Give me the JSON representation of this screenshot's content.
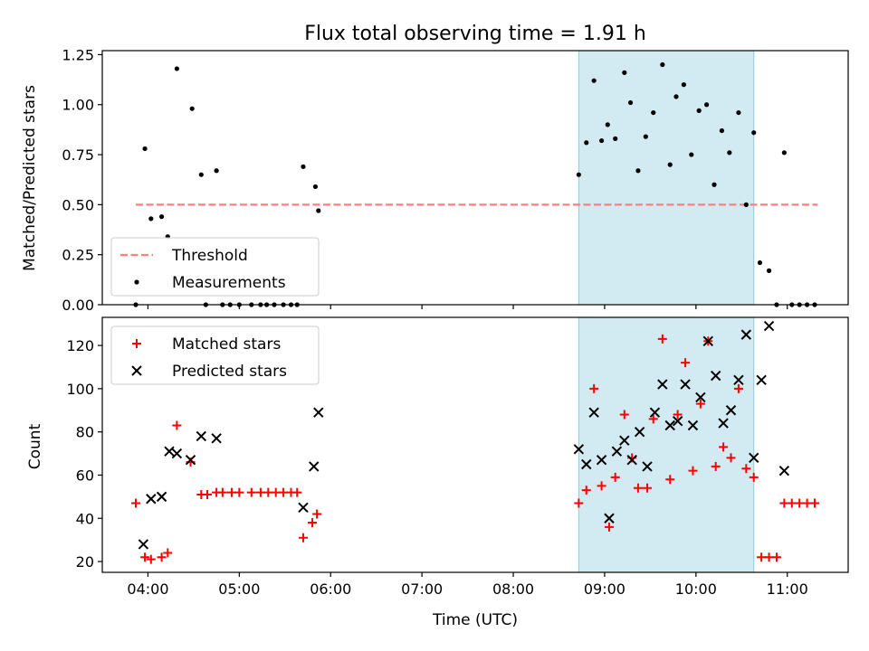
{
  "title": "Flux total observing time = 1.91 h",
  "colors": {
    "threshold": "#ff7f7f",
    "measurement": "#000000",
    "matched": "#ff0000",
    "predicted": "#000000",
    "span_fill": "#add8e6",
    "span_edge": "#8fcbd9"
  },
  "chart_data": [
    {
      "type": "scatter",
      "xlabel": "",
      "ylabel": "Matched/Predicted stars",
      "ylim": [
        0,
        1.27
      ],
      "xlim": [
        "03:30",
        "11:40"
      ],
      "yticks": [
        0.0,
        0.25,
        0.5,
        0.75,
        1.0,
        1.25
      ],
      "ytick_labels": [
        "0.00",
        "0.25",
        "0.50",
        "0.75",
        "1.00",
        "1.25"
      ],
      "highlight_span": [
        "08:43",
        "10:38"
      ],
      "legend_position": "lower-left",
      "legend": [
        "Threshold",
        "Measurements"
      ],
      "threshold": {
        "name": "Threshold",
        "y": 0.5,
        "x_range": [
          "03:52",
          "11:20"
        ]
      },
      "series": [
        {
          "name": "Measurements",
          "points": [
            [
              "03:52",
              0.0
            ],
            [
              "03:58",
              0.78
            ],
            [
              "04:02",
              0.43
            ],
            [
              "04:09",
              0.44
            ],
            [
              "04:13",
              0.34
            ],
            [
              "04:19",
              1.18
            ],
            [
              "04:29",
              0.98
            ],
            [
              "04:35",
              0.65
            ],
            [
              "04:38",
              0.0
            ],
            [
              "04:45",
              0.67
            ],
            [
              "04:49",
              0.0
            ],
            [
              "04:54",
              0.0
            ],
            [
              "05:00",
              0.0
            ],
            [
              "05:08",
              0.0
            ],
            [
              "05:14",
              0.0
            ],
            [
              "05:18",
              0.0
            ],
            [
              "05:23",
              0.0
            ],
            [
              "05:29",
              0.0
            ],
            [
              "05:34",
              0.0
            ],
            [
              "05:38",
              0.0
            ],
            [
              "05:42",
              0.69
            ],
            [
              "05:50",
              0.59
            ],
            [
              "05:52",
              0.47
            ],
            [
              "08:43",
              0.65
            ],
            [
              "08:48",
              0.81
            ],
            [
              "08:53",
              1.12
            ],
            [
              "08:58",
              0.82
            ],
            [
              "09:02",
              0.9
            ],
            [
              "09:07",
              0.83
            ],
            [
              "09:13",
              1.16
            ],
            [
              "09:17",
              1.01
            ],
            [
              "09:22",
              0.67
            ],
            [
              "09:27",
              0.84
            ],
            [
              "09:32",
              0.96
            ],
            [
              "09:38",
              1.2
            ],
            [
              "09:43",
              0.7
            ],
            [
              "09:47",
              1.04
            ],
            [
              "09:52",
              1.1
            ],
            [
              "09:57",
              0.75
            ],
            [
              "10:02",
              0.97
            ],
            [
              "10:07",
              1.0
            ],
            [
              "10:12",
              0.6
            ],
            [
              "10:17",
              0.87
            ],
            [
              "10:22",
              0.76
            ],
            [
              "10:28",
              0.96
            ],
            [
              "10:33",
              0.5
            ],
            [
              "10:38",
              0.86
            ],
            [
              "10:42",
              0.21
            ],
            [
              "10:48",
              0.17
            ],
            [
              "10:53",
              0.0
            ],
            [
              "10:58",
              0.76
            ],
            [
              "11:03",
              0.0
            ],
            [
              "11:08",
              0.0
            ],
            [
              "11:13",
              0.0
            ],
            [
              "11:18",
              0.0
            ]
          ]
        }
      ]
    },
    {
      "type": "scatter",
      "xlabel": "Time (UTC)",
      "ylabel": "Count",
      "ylim": [
        15,
        133
      ],
      "xlim": [
        "03:30",
        "11:40"
      ],
      "yticks": [
        20,
        40,
        60,
        80,
        100,
        120
      ],
      "ytick_labels": [
        "20",
        "40",
        "60",
        "80",
        "100",
        "120"
      ],
      "xticks": [
        "04:00",
        "05:00",
        "06:00",
        "07:00",
        "08:00",
        "09:00",
        "10:00",
        "11:00"
      ],
      "highlight_span": [
        "08:43",
        "10:38"
      ],
      "legend_position": "upper-left",
      "legend": [
        "Matched stars",
        "Predicted stars"
      ],
      "series": [
        {
          "name": "Matched stars",
          "marker": "plus",
          "points": [
            [
              "03:52",
              47
            ],
            [
              "03:58",
              22
            ],
            [
              "04:02",
              21
            ],
            [
              "04:09",
              22
            ],
            [
              "04:13",
              24
            ],
            [
              "04:19",
              83
            ],
            [
              "04:28",
              66
            ],
            [
              "04:35",
              51
            ],
            [
              "04:39",
              51
            ],
            [
              "04:45",
              52
            ],
            [
              "04:49",
              52
            ],
            [
              "04:55",
              52
            ],
            [
              "05:00",
              52
            ],
            [
              "05:08",
              52
            ],
            [
              "05:14",
              52
            ],
            [
              "05:19",
              52
            ],
            [
              "05:24",
              52
            ],
            [
              "05:29",
              52
            ],
            [
              "05:34",
              52
            ],
            [
              "05:38",
              52
            ],
            [
              "05:42",
              31
            ],
            [
              "05:48",
              38
            ],
            [
              "05:51",
              42
            ],
            [
              "08:43",
              47
            ],
            [
              "08:48",
              53
            ],
            [
              "08:53",
              100
            ],
            [
              "08:58",
              55
            ],
            [
              "09:03",
              36
            ],
            [
              "09:07",
              59
            ],
            [
              "09:13",
              88
            ],
            [
              "09:18",
              68
            ],
            [
              "09:22",
              54
            ],
            [
              "09:28",
              54
            ],
            [
              "09:32",
              86
            ],
            [
              "09:38",
              123
            ],
            [
              "09:43",
              58
            ],
            [
              "09:48",
              88
            ],
            [
              "09:53",
              112
            ],
            [
              "09:58",
              62
            ],
            [
              "10:03",
              93
            ],
            [
              "10:08",
              122
            ],
            [
              "10:13",
              64
            ],
            [
              "10:18",
              73
            ],
            [
              "10:23",
              68
            ],
            [
              "10:28",
              100
            ],
            [
              "10:33",
              63
            ],
            [
              "10:38",
              59
            ],
            [
              "10:43",
              22
            ],
            [
              "10:48",
              22
            ],
            [
              "10:53",
              22
            ],
            [
              "10:58",
              47
            ],
            [
              "11:03",
              47
            ],
            [
              "11:08",
              47
            ],
            [
              "11:13",
              47
            ],
            [
              "11:18",
              47
            ]
          ]
        },
        {
          "name": "Predicted stars",
          "marker": "cross",
          "points": [
            [
              "03:57",
              28
            ],
            [
              "04:02",
              49
            ],
            [
              "04:09",
              50
            ],
            [
              "04:14",
              71
            ],
            [
              "04:19",
              70
            ],
            [
              "04:28",
              67
            ],
            [
              "04:35",
              78
            ],
            [
              "04:45",
              77
            ],
            [
              "05:42",
              45
            ],
            [
              "05:49",
              64
            ],
            [
              "05:52",
              89
            ],
            [
              "08:43",
              72
            ],
            [
              "08:48",
              65
            ],
            [
              "08:53",
              89
            ],
            [
              "08:58",
              67
            ],
            [
              "09:03",
              40
            ],
            [
              "09:08",
              71
            ],
            [
              "09:13",
              76
            ],
            [
              "09:18",
              67
            ],
            [
              "09:23",
              80
            ],
            [
              "09:28",
              64
            ],
            [
              "09:33",
              89
            ],
            [
              "09:38",
              102
            ],
            [
              "09:43",
              83
            ],
            [
              "09:48",
              85
            ],
            [
              "09:53",
              102
            ],
            [
              "09:58",
              83
            ],
            [
              "10:03",
              96
            ],
            [
              "10:08",
              122
            ],
            [
              "10:13",
              106
            ],
            [
              "10:18",
              84
            ],
            [
              "10:23",
              90
            ],
            [
              "10:28",
              104
            ],
            [
              "10:33",
              125
            ],
            [
              "10:38",
              68
            ],
            [
              "10:43",
              104
            ],
            [
              "10:48",
              129
            ],
            [
              "10:58",
              62
            ]
          ]
        }
      ]
    }
  ]
}
